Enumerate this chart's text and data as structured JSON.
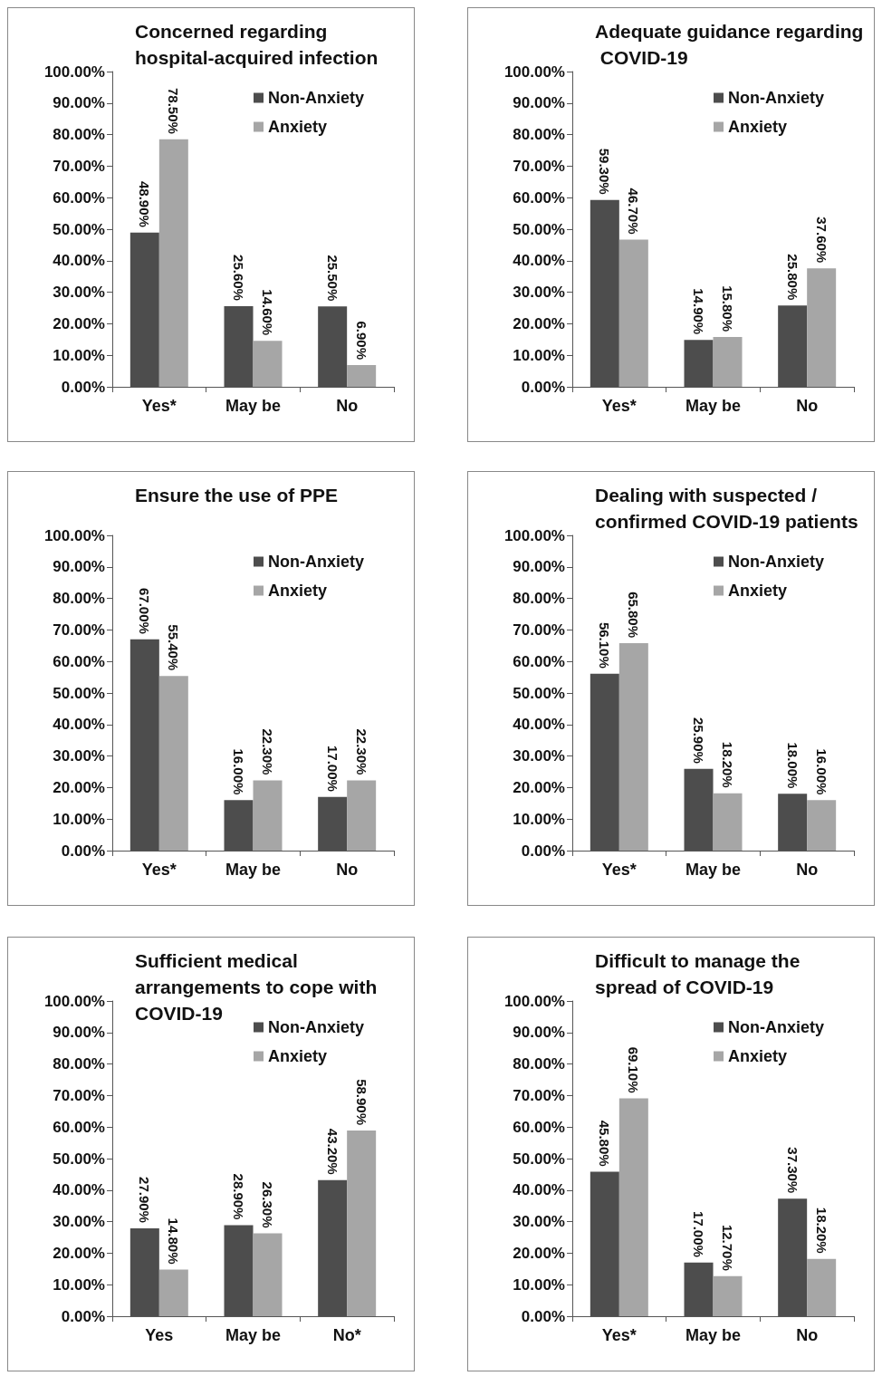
{
  "chart_data": [
    {
      "type": "bar",
      "title": "Concerned regarding hospital-acquired infection",
      "categories": [
        "Yes*",
        "May be",
        "No"
      ],
      "series": [
        {
          "name": "Non-Anxiety",
          "color": "#4d4d4d",
          "values": [
            48.9,
            25.6,
            25.5
          ],
          "value_labels": [
            "48.90%",
            "25.60%",
            "25.50%"
          ]
        },
        {
          "name": "Anxiety",
          "color": "#a6a6a6",
          "values": [
            78.5,
            14.6,
            6.9
          ],
          "value_labels": [
            "78.50%",
            "14.60%",
            "6.90%"
          ]
        }
      ],
      "ylim": [
        0,
        100
      ],
      "yticks": [
        {
          "value": 0,
          "label": "0.00%"
        },
        {
          "value": 10,
          "label": "10.00%"
        },
        {
          "value": 20,
          "label": "20.00%"
        },
        {
          "value": 30,
          "label": "30.00%"
        },
        {
          "value": 40,
          "label": "40.00%"
        },
        {
          "value": 50,
          "label": "50.00%"
        },
        {
          "value": 60,
          "label": "60.00%"
        },
        {
          "value": 70,
          "label": "70.00%"
        },
        {
          "value": 80,
          "label": "80.00%"
        },
        {
          "value": 90,
          "label": "90.00%"
        },
        {
          "value": 100,
          "label": "100.00%"
        }
      ],
      "grid": false,
      "legend": "top right"
    },
    {
      "type": "bar",
      "title": "Adequate guidance regarding COVID-19",
      "categories": [
        "Yes*",
        "May be",
        "No"
      ],
      "series": [
        {
          "name": "Non-Anxiety",
          "color": "#4d4d4d",
          "values": [
            59.3,
            14.9,
            25.8
          ],
          "value_labels": [
            "59.30%",
            "14.90%",
            "25.80%"
          ]
        },
        {
          "name": "Anxiety",
          "color": "#a6a6a6",
          "values": [
            46.7,
            15.8,
            37.6
          ],
          "value_labels": [
            "46.70%",
            "15.80%",
            "37.60%"
          ]
        }
      ],
      "ylim": [
        0,
        100
      ],
      "yticks": [
        {
          "value": 0,
          "label": "0.00%"
        },
        {
          "value": 10,
          "label": "10.00%"
        },
        {
          "value": 20,
          "label": "20.00%"
        },
        {
          "value": 30,
          "label": "30.00%"
        },
        {
          "value": 40,
          "label": "40.00%"
        },
        {
          "value": 50,
          "label": "50.00%"
        },
        {
          "value": 60,
          "label": "60.00%"
        },
        {
          "value": 70,
          "label": "70.00%"
        },
        {
          "value": 80,
          "label": "80.00%"
        },
        {
          "value": 90,
          "label": "90.00%"
        },
        {
          "value": 100,
          "label": "100.00%"
        }
      ],
      "grid": false,
      "legend": "top right"
    },
    {
      "type": "bar",
      "title": "Ensure the use of PPE",
      "categories": [
        "Yes*",
        "May be",
        "No"
      ],
      "series": [
        {
          "name": "Non-Anxiety",
          "color": "#4d4d4d",
          "values": [
            67.0,
            16.0,
            17.0
          ],
          "value_labels": [
            "67.00%",
            "16.00%",
            "17.00%"
          ]
        },
        {
          "name": "Anxiety",
          "color": "#a6a6a6",
          "values": [
            55.4,
            22.3,
            22.3
          ],
          "value_labels": [
            "55.40%",
            "22.30%",
            "22.30%"
          ]
        }
      ],
      "ylim": [
        0,
        100
      ],
      "yticks": [
        {
          "value": 0,
          "label": "0.00%"
        },
        {
          "value": 10,
          "label": "10.00%"
        },
        {
          "value": 20,
          "label": "20.00%"
        },
        {
          "value": 30,
          "label": "30.00%"
        },
        {
          "value": 40,
          "label": "40.00%"
        },
        {
          "value": 50,
          "label": "50.00%"
        },
        {
          "value": 60,
          "label": "60.00%"
        },
        {
          "value": 70,
          "label": "70.00%"
        },
        {
          "value": 80,
          "label": "80.00%"
        },
        {
          "value": 90,
          "label": "90.00%"
        },
        {
          "value": 100,
          "label": "100.00%"
        }
      ],
      "grid": false,
      "legend": "top right"
    },
    {
      "type": "bar",
      "title": "Dealing with suspected /confirmed COVID-19 patients",
      "categories": [
        "Yes*",
        "May be",
        "No"
      ],
      "series": [
        {
          "name": "Non-Anxiety",
          "color": "#4d4d4d",
          "values": [
            56.1,
            25.9,
            18.0
          ],
          "value_labels": [
            "56.10%",
            "25.90%",
            "18.00%"
          ]
        },
        {
          "name": "Anxiety",
          "color": "#a6a6a6",
          "values": [
            65.8,
            18.2,
            16.0
          ],
          "value_labels": [
            "65.80%",
            "18.20%",
            "16.00%"
          ]
        }
      ],
      "ylim": [
        0,
        100
      ],
      "yticks": [
        {
          "value": 0,
          "label": "0.00%"
        },
        {
          "value": 10,
          "label": "10.00%"
        },
        {
          "value": 20,
          "label": "20.00%"
        },
        {
          "value": 30,
          "label": "30.00%"
        },
        {
          "value": 40,
          "label": "40.00%"
        },
        {
          "value": 50,
          "label": "50.00%"
        },
        {
          "value": 60,
          "label": "60.00%"
        },
        {
          "value": 70,
          "label": "70.00%"
        },
        {
          "value": 80,
          "label": "80.00%"
        },
        {
          "value": 90,
          "label": "90.00%"
        },
        {
          "value": 100,
          "label": "100.00%"
        }
      ],
      "grid": false,
      "legend": "top right"
    },
    {
      "type": "bar",
      "title": "Sufficient medical arrangements to cope with COVID-19",
      "categories": [
        "Yes",
        "May be",
        "No*"
      ],
      "series": [
        {
          "name": "Non-Anxiety",
          "color": "#4d4d4d",
          "values": [
            27.9,
            28.9,
            43.2
          ],
          "value_labels": [
            "27.90%",
            "28.90%",
            "43.20%"
          ]
        },
        {
          "name": "Anxiety",
          "color": "#a6a6a6",
          "values": [
            14.8,
            26.3,
            58.9
          ],
          "value_labels": [
            "14.80%",
            "26.30%",
            "58.90%"
          ]
        }
      ],
      "ylim": [
        0,
        100
      ],
      "yticks": [
        {
          "value": 0,
          "label": "0.00%"
        },
        {
          "value": 10,
          "label": "10.00%"
        },
        {
          "value": 20,
          "label": "20.00%"
        },
        {
          "value": 30,
          "label": "30.00%"
        },
        {
          "value": 40,
          "label": "40.00%"
        },
        {
          "value": 50,
          "label": "50.00%"
        },
        {
          "value": 60,
          "label": "60.00%"
        },
        {
          "value": 70,
          "label": "70.00%"
        },
        {
          "value": 80,
          "label": "80.00%"
        },
        {
          "value": 90,
          "label": "90.00%"
        },
        {
          "value": 100,
          "label": "100.00%"
        }
      ],
      "grid": false,
      "legend": "top right"
    },
    {
      "type": "bar",
      "title": "Difficult to manage the spread of COVID-19",
      "categories": [
        "Yes*",
        "May be",
        "No"
      ],
      "series": [
        {
          "name": "Non-Anxiety",
          "color": "#4d4d4d",
          "values": [
            45.8,
            17.0,
            37.3
          ],
          "value_labels": [
            "45.80%",
            "17.00%",
            "37.30%"
          ]
        },
        {
          "name": "Anxiety",
          "color": "#a6a6a6",
          "values": [
            69.1,
            12.7,
            18.2
          ],
          "value_labels": [
            "69.10%",
            "12.70%",
            "18.20%"
          ]
        }
      ],
      "ylim": [
        0,
        100
      ],
      "yticks": [
        {
          "value": 0,
          "label": "0.00%"
        },
        {
          "value": 10,
          "label": "10.00%"
        },
        {
          "value": 20,
          "label": "20.00%"
        },
        {
          "value": 30,
          "label": "30.00%"
        },
        {
          "value": 40,
          "label": "40.00%"
        },
        {
          "value": 50,
          "label": "50.00%"
        },
        {
          "value": 60,
          "label": "60.00%"
        },
        {
          "value": 70,
          "label": "70.00%"
        },
        {
          "value": 80,
          "label": "80.00%"
        },
        {
          "value": 90,
          "label": "90.00%"
        },
        {
          "value": 100,
          "label": "100.00%"
        }
      ],
      "grid": false,
      "legend": "top right"
    }
  ]
}
